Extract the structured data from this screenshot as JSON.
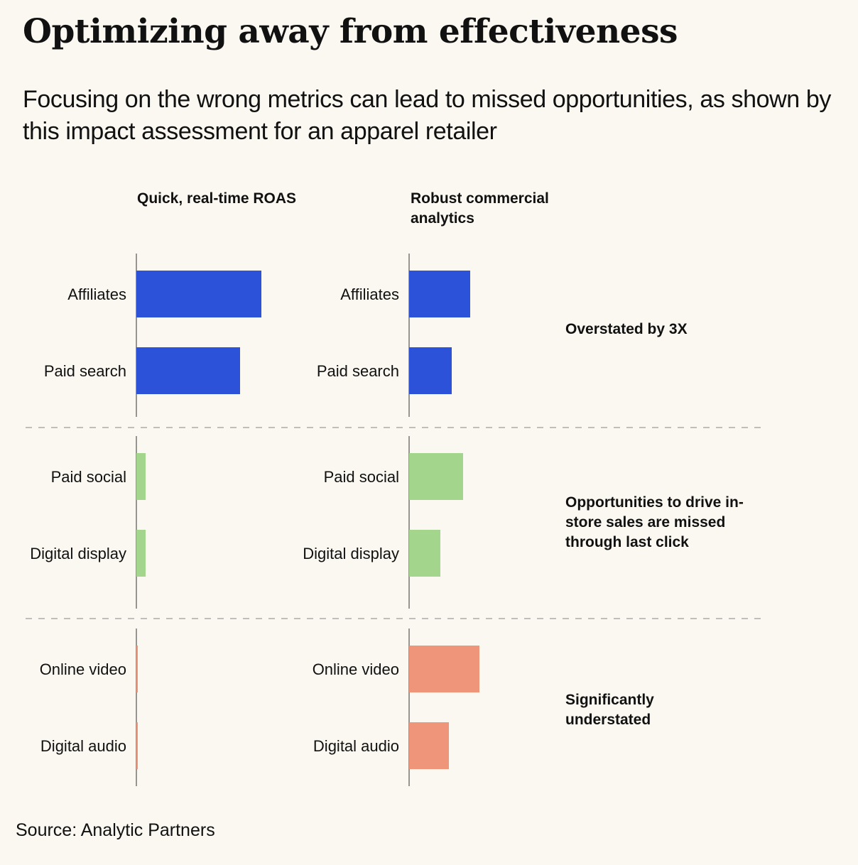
{
  "title": "Optimizing away from effectiveness",
  "subtitle": "Focusing on the wrong metrics can lead to missed opportunities, as shown by this impact assessment for an apparel retailer",
  "source": "Source: Analytic Partners",
  "colors": {
    "background": "#fbf8f1",
    "overstated": "#2b52d9",
    "missed": "#a3d68c",
    "understated": "#ef967a"
  },
  "chart_data": {
    "type": "bar",
    "orientation": "horizontal",
    "panels": [
      "Quick, real-time ROAS",
      "Robust commercial analytics"
    ],
    "groups": [
      {
        "note": "Overstated by 3X",
        "color": "#2b52d9",
        "categories": [
          "Affiliates",
          "Paid search"
        ],
        "series": [
          {
            "name": "Quick, real-time ROAS",
            "values": [
              176,
              146
            ]
          },
          {
            "name": "Robust commercial analytics",
            "values": [
              86,
              60
            ]
          }
        ]
      },
      {
        "note": "Opportunities to drive in-store sales are missed through last click",
        "color": "#a3d68c",
        "categories": [
          "Paid social",
          "Digital display"
        ],
        "series": [
          {
            "name": "Quick, real-time ROAS",
            "values": [
              13,
              13
            ]
          },
          {
            "name": "Robust commercial analytics",
            "values": [
              76,
              44
            ]
          }
        ]
      },
      {
        "note": "Significantly understated",
        "color": "#ef967a",
        "categories": [
          "Online video",
          "Digital audio"
        ],
        "series": [
          {
            "name": "Quick, real-time ROAS",
            "values": [
              2,
              2
            ]
          },
          {
            "name": "Robust commercial analytics",
            "values": [
              99,
              56
            ]
          }
        ]
      }
    ]
  }
}
